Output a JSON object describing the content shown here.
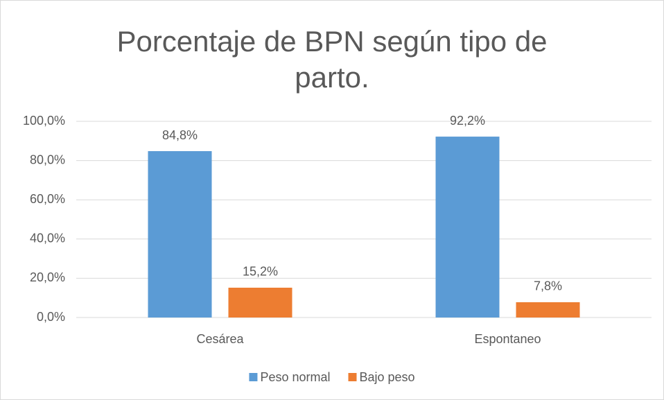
{
  "chart_data": {
    "type": "bar",
    "title": "Porcentaje de BPN según tipo de parto.",
    "categories": [
      "Cesárea",
      "Espontaneo"
    ],
    "series": [
      {
        "name": "Peso normal",
        "color": "#5b9bd5",
        "values": [
          84.8,
          92.2
        ],
        "value_labels": [
          "84,8%",
          "92,2%"
        ]
      },
      {
        "name": "Bajo peso",
        "color": "#ed7d31",
        "values": [
          15.2,
          7.8
        ],
        "value_labels": [
          "15,2%",
          "7,8%"
        ]
      }
    ],
    "ylim": [
      0,
      100
    ],
    "yticks": [
      {
        "value": 0,
        "label": "0,0%"
      },
      {
        "value": 20,
        "label": "20,0%"
      },
      {
        "value": 40,
        "label": "40,0%"
      },
      {
        "value": 60,
        "label": "60,0%"
      },
      {
        "value": 80,
        "label": "80,0%"
      },
      {
        "value": 100,
        "label": "100,0%"
      }
    ],
    "grid": true,
    "legend": "bottom"
  }
}
